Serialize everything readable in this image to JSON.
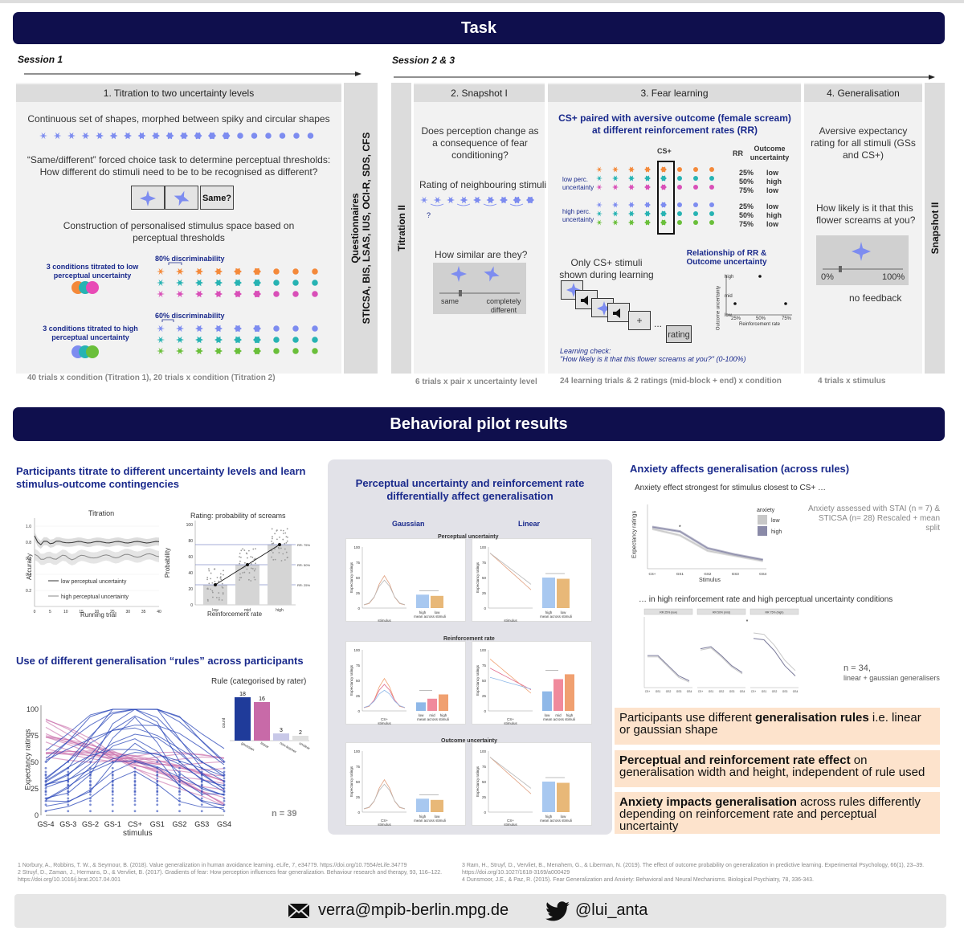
{
  "task": {
    "title": "Task",
    "session1": "Session 1",
    "session23": "Session 2 & 3",
    "titration": {
      "header": "1. Titration to two uncertainty levels",
      "continuous": "Continuous set of shapes, morphed between spiky and circular shapes",
      "forced_choice": "“Same/different” forced choice task to determine perceptual thresholds: How different do stimuli need to be to be recognised as different?",
      "same_button": "Same?",
      "construction": "Construction of personalised stimulus space based on perceptual thresholds",
      "low_label": "3 conditions titrated to low perceptual uncertainty",
      "high_label": "3 conditions titrated to high perceptual uncertainty",
      "disc80": "80% discriminability",
      "disc60": "60% discriminability",
      "trials": "40 trials x condition (Titration 1),  20 trials x condition (Titration 2)"
    },
    "questionnaires": {
      "title": "Questionnaires",
      "list": "STICSA, BIS, LSAS, IUS, OCI-R, SDS, CFS"
    },
    "titration2": "Titration II",
    "snapshot1": {
      "header": "2. Snapshot I",
      "question": "Does perception change as a consequence of fear conditioning?",
      "rating": "Rating of neighbouring stimuli",
      "q_mark": "?",
      "similar": "How similar are they?",
      "same": "same",
      "different": "completely different",
      "trials": "6 trials x pair x uncertainty level"
    },
    "fear": {
      "header": "3. Fear learning",
      "title": "CS+ paired with aversive outcome (female scream) at different reinforcement rates (RR)",
      "csplus": "CS+",
      "rr": "RR",
      "outcome_unc": "Outcome uncertainty",
      "low_perc": "low perc. uncertainty",
      "high_perc": "high perc. uncertainty",
      "rr_values": [
        "25%",
        "50%",
        "75%",
        "25%",
        "50%",
        "75%"
      ],
      "unc_values": [
        "low",
        "high",
        "low",
        "low",
        "high",
        "low"
      ],
      "only_cs": "Only CS+ stimuli shown during learning",
      "relationship": "Relationship of RR & Outcome uncertainty",
      "axis_y": "Outcome uncertainty",
      "axis_x": "Reinforcement rate",
      "y_high": "high",
      "y_mid": "mid",
      "y_low": "low",
      "x_ticks": [
        "25%",
        "50%",
        "75%"
      ],
      "plus": "+",
      "dots": "...",
      "rating": "rating",
      "check1": "Learning check:",
      "check2": "\"How likely is it that this flower screams at you?\" (0-100%)",
      "trials": "24 learning trials & 2 ratings (mid-block + end) x condition"
    },
    "generalisation": {
      "header": "4. Generalisation",
      "text": "Aversive expectancy rating for all stimuli (GSs and CS+)",
      "question": "How likely is it that this flower screams at you?",
      "p0": "0%",
      "p100": "100%",
      "nofeedback": "no feedback",
      "trials": "4 trials x stimulus"
    },
    "snapshot2": "Snapshot II"
  },
  "results": {
    "title": "Behavioral pilot results",
    "left": {
      "heading1": "Participants titrate to different uncertainty levels and learn stimulus-outcome contingencies",
      "titration_plot": {
        "title": "Titration",
        "ylabel": "Accuracy",
        "xlabel": "Running trial",
        "yticks": [
          "0.2",
          "0.4",
          "0.6",
          "0.8",
          "1.0"
        ],
        "xticks": [
          "0",
          "5",
          "10",
          "15",
          "20",
          "25",
          "30",
          "35",
          "40"
        ],
        "legend_low": "low perceptual uncertainty",
        "legend_high": "high perceptual uncertainty"
      },
      "rating_plot": {
        "title": "Rating: probability of screams",
        "ylabel": "Probability",
        "xlabel": "Reinforcement rate",
        "yticks": [
          "0",
          "20",
          "40",
          "60",
          "80",
          "100"
        ],
        "xticks": [
          "low",
          "mid",
          "high"
        ],
        "rr": [
          "RR: 75%",
          "RR: 50%",
          "RR: 25%"
        ]
      },
      "heading2": "Use of different generalisation “rules” across participants",
      "rule_title": "Rule (categorised by rater)",
      "rule_counts": [
        "18",
        "16",
        "3",
        "2"
      ],
      "rule_names": [
        "gaussian",
        "linear",
        "non-learner",
        "unclear"
      ],
      "rule_ylabel": "count",
      "gen_ylabel": "Expectancy ratings",
      "gen_xlabel": "stimulus",
      "gen_yticks": [
        "0",
        "25",
        "50",
        "75",
        "100"
      ],
      "gen_xticks": [
        "GS-4",
        "GS-3",
        "GS-2",
        "GS-1",
        "CS+",
        "GS1",
        "GS2",
        "GS3",
        "GS4"
      ],
      "n": "n = 39"
    },
    "middle": {
      "heading": "Perceptual uncertainty and reinforcement rate differentially affect generalisation",
      "gaussian": "Gaussian",
      "linear": "Linear",
      "row1": "Perceptual uncertainty",
      "row2": "Reinforcement rate",
      "row3": "Outcome uncertainty",
      "ylabel": "Expectancy ratings",
      "stimulus": "stimulus",
      "mean": "mean across stimuli",
      "high": "high",
      "low": "low",
      "mid": "mid",
      "csplus": "CS+",
      "yticks": [
        "0",
        "25",
        "50",
        "75",
        "100"
      ]
    },
    "right": {
      "heading": "Anxiety affects generalisation (across rules)",
      "sub1": "Anxiety effect strongest for stimulus closest to CS+ …",
      "legend_title": "anxiety",
      "legend_low": "low",
      "legend_high": "high",
      "note": "Anxiety assessed with STAI (n = 7) & STICSA (n= 28) Rescaled + mean split",
      "ylabel": "Expectancy ratings",
      "xlabel": "Stimulus",
      "xticks": [
        "CS+",
        "GS1",
        "GS2",
        "GS3",
        "GS4"
      ],
      "sub2": "… in high reinforcement rate and high perceptual uncertainty conditions",
      "facets": [
        "RR 25% (low)",
        "RR 50% (mid)",
        "RR 75% (high)"
      ],
      "n": "n = 34,",
      "n2": "linear + gaussian generalisers",
      "box1_a": "Participants use different ",
      "box1_b": "generalisation rules",
      "box1_c": " i.e. linear or gaussian shape",
      "box2_a": "Perceptual and reinforcement rate effect",
      "box2_b": " on generalisation width and height, independent of rule used",
      "box3_a": "Anxiety impacts generalisation",
      "box3_b": " across rules differently depending on reinforcement rate and perceptual uncertainty"
    }
  },
  "references": {
    "r1": "1 Norbury, A., Robbins, T. W., & Seymour, B. (2018). Value generalization in human avoidance learning. eLife, 7, e34779. https://doi.org/10.7554/eLife.34779",
    "r2": "2 Struyf, D., Zaman, J., Hermans, D., & Vervliet, B. (2017). Gradients of fear: How perception influences fear generalization. Behaviour research and therapy, 93, 116–122. https://doi.org/10.1016/j.brat.2017.04.001",
    "r3": "3 Ram, H., Struyf, D., Vervliet, B., Menahem, G., & Liberman, N. (2019). The effect of outcome probability on generalization in predictive learning. Experimental Psychology, 66(1), 23–39. https://doi.org/10.1027/1618-3169/a000429",
    "r4": "4 Dunsmoor, J.E., & Paz, R. (2015). Fear Generalization and Anxiety: Behavioral and Neural Mechanisms. Biological Psychiatry, 78, 336-343."
  },
  "footer": {
    "email": "verra@mpib-berlin.mpg.de",
    "twitter": "@lui_anta",
    "email_icon": "envelope-icon",
    "twitter_icon": "twitter-bird-icon"
  },
  "colors": {
    "navy": "#0f0f4d",
    "orange": "#f4893a",
    "teal": "#27b3b3",
    "magenta": "#d94fb8",
    "periwinkle": "#7d8cf0",
    "green": "#6abf3a",
    "highlight": "#fde3cc"
  }
}
